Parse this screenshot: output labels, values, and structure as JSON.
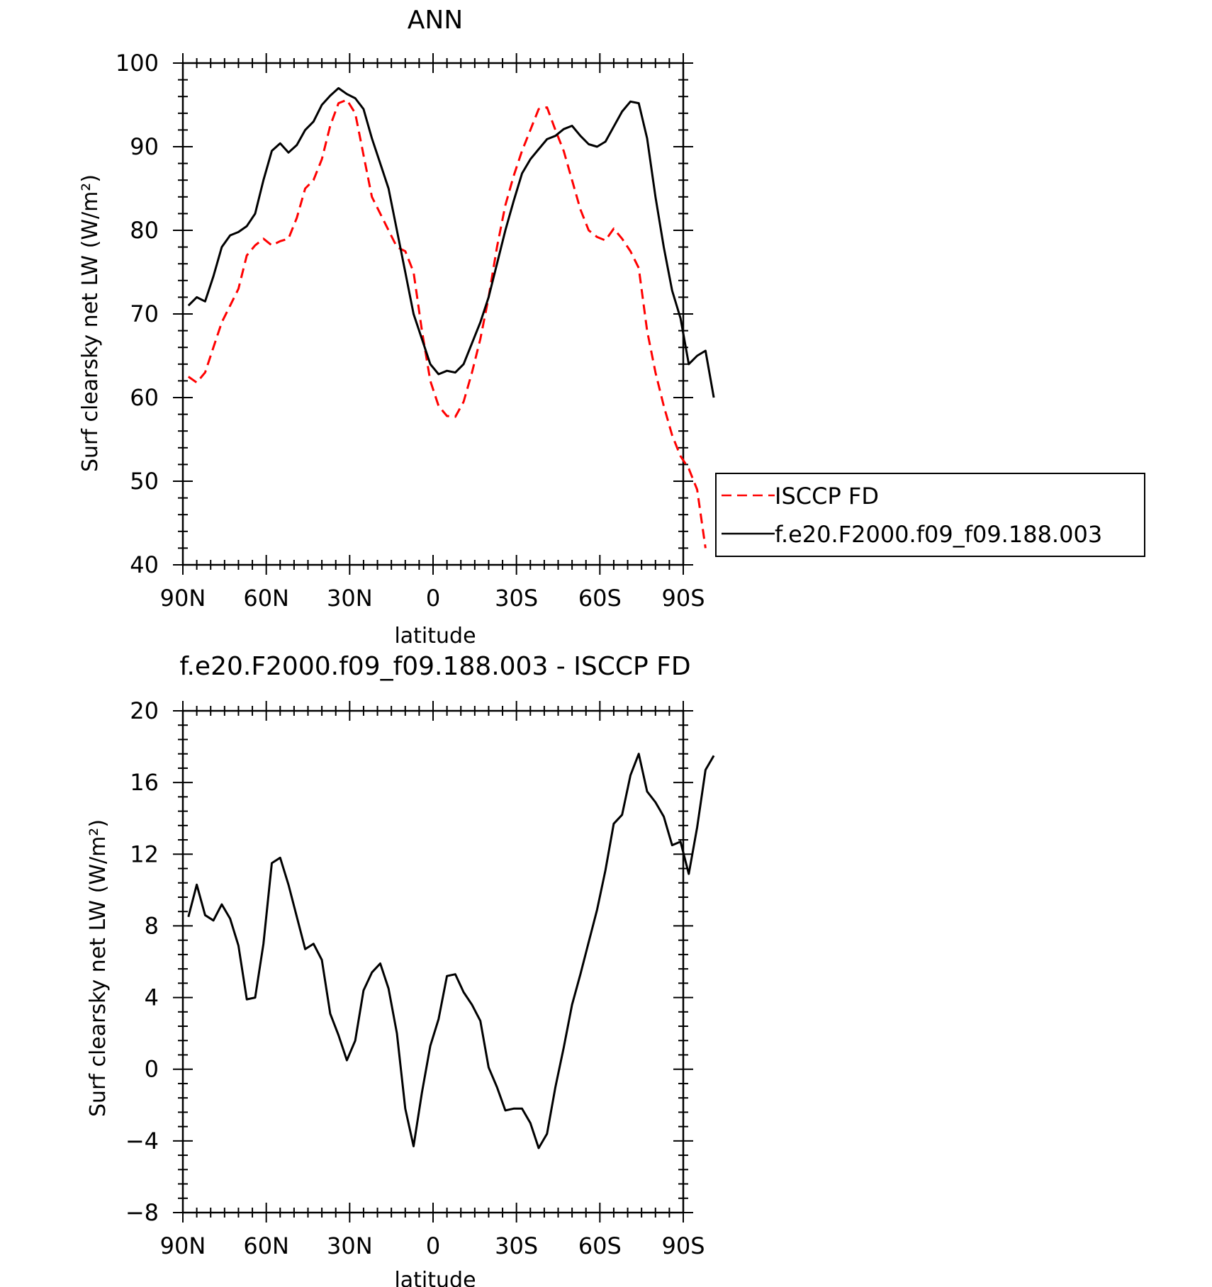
{
  "chart_data": [
    {
      "type": "line",
      "title": "ANN",
      "xlabel": "latitude",
      "ylabel": "Surf clearsky net LW (W/m²)",
      "xlim": [
        90,
        -90
      ],
      "ylim": [
        40,
        100
      ],
      "xticks": [
        90,
        60,
        30,
        0,
        -30,
        -60,
        -90
      ],
      "xtick_labels": [
        "90N",
        "60N",
        "30N",
        "0",
        "30S",
        "60S",
        "90S"
      ],
      "yticks": [
        40,
        50,
        60,
        70,
        80,
        90,
        100
      ],
      "ytick_labels": [
        "40",
        "50",
        "60",
        "70",
        "80",
        "90",
        "100"
      ],
      "legend_position": "right",
      "series": [
        {
          "name": "ISCCP FD",
          "color": "#ff0000",
          "dash": "dashed",
          "points": [
            [
              88,
              62.5
            ],
            [
              85,
              61.8
            ],
            [
              82,
              63
            ],
            [
              79,
              66
            ],
            [
              76,
              69
            ],
            [
              73,
              71
            ],
            [
              70,
              73
            ],
            [
              67,
              77
            ],
            [
              64,
              78.2
            ],
            [
              61,
              79
            ],
            [
              58,
              78.2
            ],
            [
              55,
              78.7
            ],
            [
              52,
              79
            ],
            [
              49,
              81.5
            ],
            [
              46,
              85
            ],
            [
              43,
              86
            ],
            [
              40,
              88.5
            ],
            [
              37,
              92.5
            ],
            [
              34,
              95.2
            ],
            [
              31,
              95.6
            ],
            [
              28,
              94
            ],
            [
              25,
              89
            ],
            [
              22,
              84
            ],
            [
              19,
              82
            ],
            [
              16,
              80
            ],
            [
              13,
              78
            ],
            [
              10,
              77.5
            ],
            [
              7,
              75
            ],
            [
              4,
              68
            ],
            [
              1,
              62
            ],
            [
              -2,
              59
            ],
            [
              -5,
              57.8
            ],
            [
              -8,
              57.7
            ],
            [
              -11,
              59.5
            ],
            [
              -14,
              63
            ],
            [
              -17,
              67
            ],
            [
              -20,
              72
            ],
            [
              -23,
              78
            ],
            [
              -26,
              83
            ],
            [
              -29,
              86.5
            ],
            [
              -32,
              89.5
            ],
            [
              -35,
              92
            ],
            [
              -38,
              94.5
            ],
            [
              -41,
              94.7
            ],
            [
              -44,
              92
            ],
            [
              -47,
              89.5
            ],
            [
              -50,
              86
            ],
            [
              -53,
              82.5
            ],
            [
              -56,
              80
            ],
            [
              -59,
              79.2
            ],
            [
              -62,
              78.8
            ],
            [
              -65,
              80.2
            ],
            [
              -68,
              79
            ],
            [
              -71,
              77.5
            ],
            [
              -74,
              75.5
            ],
            [
              -77,
              68
            ],
            [
              -80,
              63
            ],
            [
              -83,
              59
            ],
            [
              -86,
              55.5
            ],
            [
              -89,
              53
            ],
            [
              -92,
              51.5
            ],
            [
              -95,
              49
            ],
            [
              -98,
              42
            ]
          ]
        },
        {
          "name": "f.e20.F2000.f09_f09.188.003",
          "color": "#000000",
          "dash": "solid",
          "points": [
            [
              88,
              71
            ],
            [
              85,
              72
            ],
            [
              82,
              71.5
            ],
            [
              79,
              74.5
            ],
            [
              76,
              78
            ],
            [
              73,
              79.4
            ],
            [
              70,
              79.8
            ],
            [
              67,
              80.5
            ],
            [
              64,
              82
            ],
            [
              61,
              86
            ],
            [
              58,
              89.5
            ],
            [
              55,
              90.4
            ],
            [
              52,
              89.3
            ],
            [
              49,
              90.2
            ],
            [
              46,
              92
            ],
            [
              43,
              93
            ],
            [
              40,
              95
            ],
            [
              37,
              96.1
            ],
            [
              34,
              97
            ],
            [
              31,
              96.3
            ],
            [
              28,
              95.8
            ],
            [
              25,
              94.5
            ],
            [
              22,
              91
            ],
            [
              19,
              88
            ],
            [
              16,
              85
            ],
            [
              13,
              80
            ],
            [
              10,
              75
            ],
            [
              7,
              70
            ],
            [
              4,
              67
            ],
            [
              1,
              64
            ],
            [
              -2,
              62.8
            ],
            [
              -5,
              63.2
            ],
            [
              -8,
              63
            ],
            [
              -11,
              64
            ],
            [
              -14,
              66.5
            ],
            [
              -17,
              69
            ],
            [
              -20,
              72
            ],
            [
              -23,
              76
            ],
            [
              -26,
              80
            ],
            [
              -29,
              83.5
            ],
            [
              -32,
              86.8
            ],
            [
              -35,
              88.5
            ],
            [
              -38,
              89.7
            ],
            [
              -41,
              90.9
            ],
            [
              -44,
              91.3
            ],
            [
              -47,
              92.1
            ],
            [
              -50,
              92.5
            ],
            [
              -53,
              91.3
            ],
            [
              -56,
              90.3
            ],
            [
              -59,
              90
            ],
            [
              -62,
              90.6
            ],
            [
              -65,
              92.4
            ],
            [
              -68,
              94.2
            ],
            [
              -71,
              95.4
            ],
            [
              -74,
              95.2
            ],
            [
              -77,
              91
            ],
            [
              -80,
              84
            ],
            [
              -83,
              78
            ],
            [
              -86,
              72.8
            ],
            [
              -89,
              69.5
            ],
            [
              -92,
              64
            ],
            [
              -95,
              65
            ],
            [
              -98,
              65.6
            ],
            [
              -101,
              60
            ]
          ]
        }
      ]
    },
    {
      "type": "line",
      "title": "f.e20.F2000.f09_f09.188.003 - ISCCP FD",
      "xlabel": "latitude",
      "ylabel": "Surf clearsky net LW (W/m²)",
      "xlim": [
        90,
        -90
      ],
      "ylim": [
        -8,
        20
      ],
      "xticks": [
        90,
        60,
        30,
        0,
        -30,
        -60,
        -90
      ],
      "xtick_labels": [
        "90N",
        "60N",
        "30N",
        "0",
        "30S",
        "60S",
        "90S"
      ],
      "yticks": [
        -8,
        -4,
        0,
        4,
        8,
        12,
        16,
        20
      ],
      "ytick_labels": [
        "−8",
        "−4",
        "0",
        "4",
        "8",
        "12",
        "16",
        "20"
      ],
      "series": [
        {
          "color": "#000000",
          "dash": "solid",
          "points": [
            [
              88,
              8.5
            ],
            [
              85,
              10.3
            ],
            [
              82,
              8.6
            ],
            [
              79,
              8.3
            ],
            [
              76,
              9.2
            ],
            [
              73,
              8.4
            ],
            [
              70,
              6.9
            ],
            [
              67,
              3.9
            ],
            [
              64,
              4
            ],
            [
              61,
              7
            ],
            [
              58,
              11.5
            ],
            [
              55,
              11.8
            ],
            [
              52,
              10.3
            ],
            [
              49,
              8.5
            ],
            [
              46,
              6.7
            ],
            [
              43,
              7
            ],
            [
              40,
              6.1
            ],
            [
              37,
              3.1
            ],
            [
              34,
              1.9
            ],
            [
              31,
              0.5
            ],
            [
              28,
              1.6
            ],
            [
              25,
              4.4
            ],
            [
              22,
              5.4
            ],
            [
              19,
              5.9
            ],
            [
              16,
              4.5
            ],
            [
              13,
              2
            ],
            [
              10,
              -2.2
            ],
            [
              7,
              -4.3
            ],
            [
              4,
              -1.3
            ],
            [
              1,
              1.3
            ],
            [
              -2,
              2.8
            ],
            [
              -5,
              5.2
            ],
            [
              -8,
              5.3
            ],
            [
              -11,
              4.3
            ],
            [
              -14,
              3.6
            ],
            [
              -17,
              2.7
            ],
            [
              -20,
              0.1
            ],
            [
              -23,
              -1
            ],
            [
              -26,
              -2.3
            ],
            [
              -29,
              -2.2
            ],
            [
              -32,
              -2.2
            ],
            [
              -35,
              -3
            ],
            [
              -38,
              -4.4
            ],
            [
              -41,
              -3.6
            ],
            [
              -44,
              -1
            ],
            [
              -47,
              1.2
            ],
            [
              -50,
              3.6
            ],
            [
              -53,
              5.3
            ],
            [
              -56,
              7.1
            ],
            [
              -59,
              8.9
            ],
            [
              -62,
              11.1
            ],
            [
              -65,
              13.7
            ],
            [
              -68,
              14.2
            ],
            [
              -71,
              16.4
            ],
            [
              -74,
              17.6
            ],
            [
              -77,
              15.5
            ],
            [
              -80,
              14.9
            ],
            [
              -83,
              14.1
            ],
            [
              -86,
              12.5
            ],
            [
              -89,
              12.7
            ],
            [
              -92,
              10.9
            ],
            [
              -95,
              13.5
            ],
            [
              -98,
              16.7
            ],
            [
              -101,
              17.5
            ]
          ]
        }
      ]
    }
  ]
}
